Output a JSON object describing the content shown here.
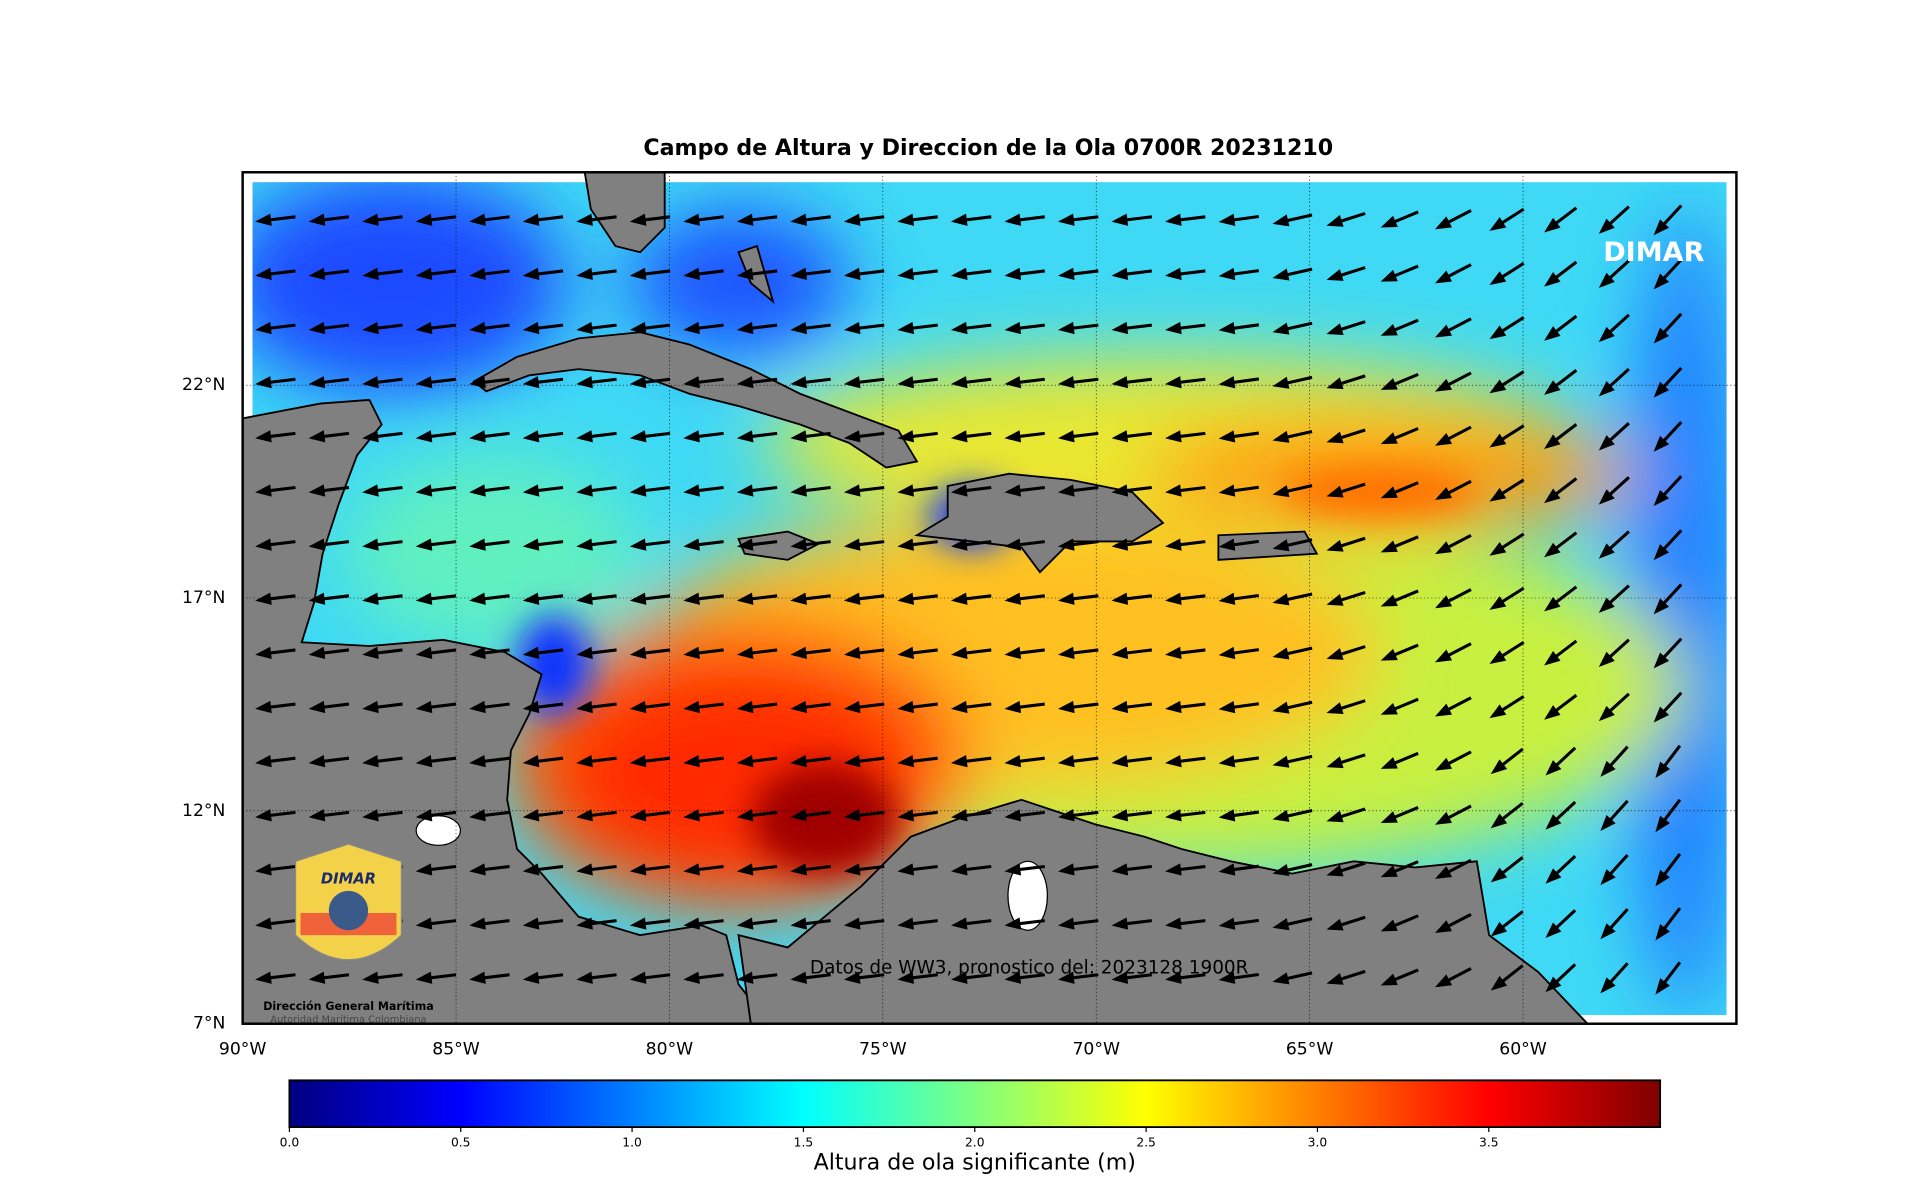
{
  "title": "Campo de Altura y Direccion de la Ola 0700R 20231210",
  "map": {
    "lon_lim": [
      -90,
      -55
    ],
    "lat_lim": [
      7,
      27
    ],
    "lon_ticks": [
      {
        "value": -90,
        "label": "90°W"
      },
      {
        "value": -85,
        "label": "85°W"
      },
      {
        "value": -80,
        "label": "80°W"
      },
      {
        "value": -75,
        "label": "75°W"
      },
      {
        "value": -70,
        "label": "70°W"
      },
      {
        "value": -65,
        "label": "65°W"
      },
      {
        "value": -60,
        "label": "60°W"
      }
    ],
    "lat_ticks": [
      {
        "value": 7,
        "label": "7°N"
      },
      {
        "value": 12,
        "label": "12°N"
      },
      {
        "value": 17,
        "label": "17°N"
      },
      {
        "value": 22,
        "label": "22°N"
      }
    ],
    "brand": "DIMAR",
    "footnote": "Datos de WW3, pronostico del: 2023128 1900R",
    "logo": {
      "wordmark": "DIMAR",
      "name": "Dirección General Marítima",
      "subtitle": "Autoridad Marítima Colombiana"
    }
  },
  "colorbar": {
    "lim": [
      0,
      4
    ],
    "ticks": [
      {
        "value": 0,
        "label": "0.0"
      },
      {
        "value": 0.5,
        "label": "0.5"
      },
      {
        "value": 1,
        "label": "1.0"
      },
      {
        "value": 1.5,
        "label": "1.5"
      },
      {
        "value": 2,
        "label": "2.0"
      },
      {
        "value": 2.5,
        "label": "2.5"
      },
      {
        "value": 3,
        "label": "3.0"
      },
      {
        "value": 3.5,
        "label": "3.5"
      }
    ],
    "label": "Altura de ola significante (m)"
  }
}
